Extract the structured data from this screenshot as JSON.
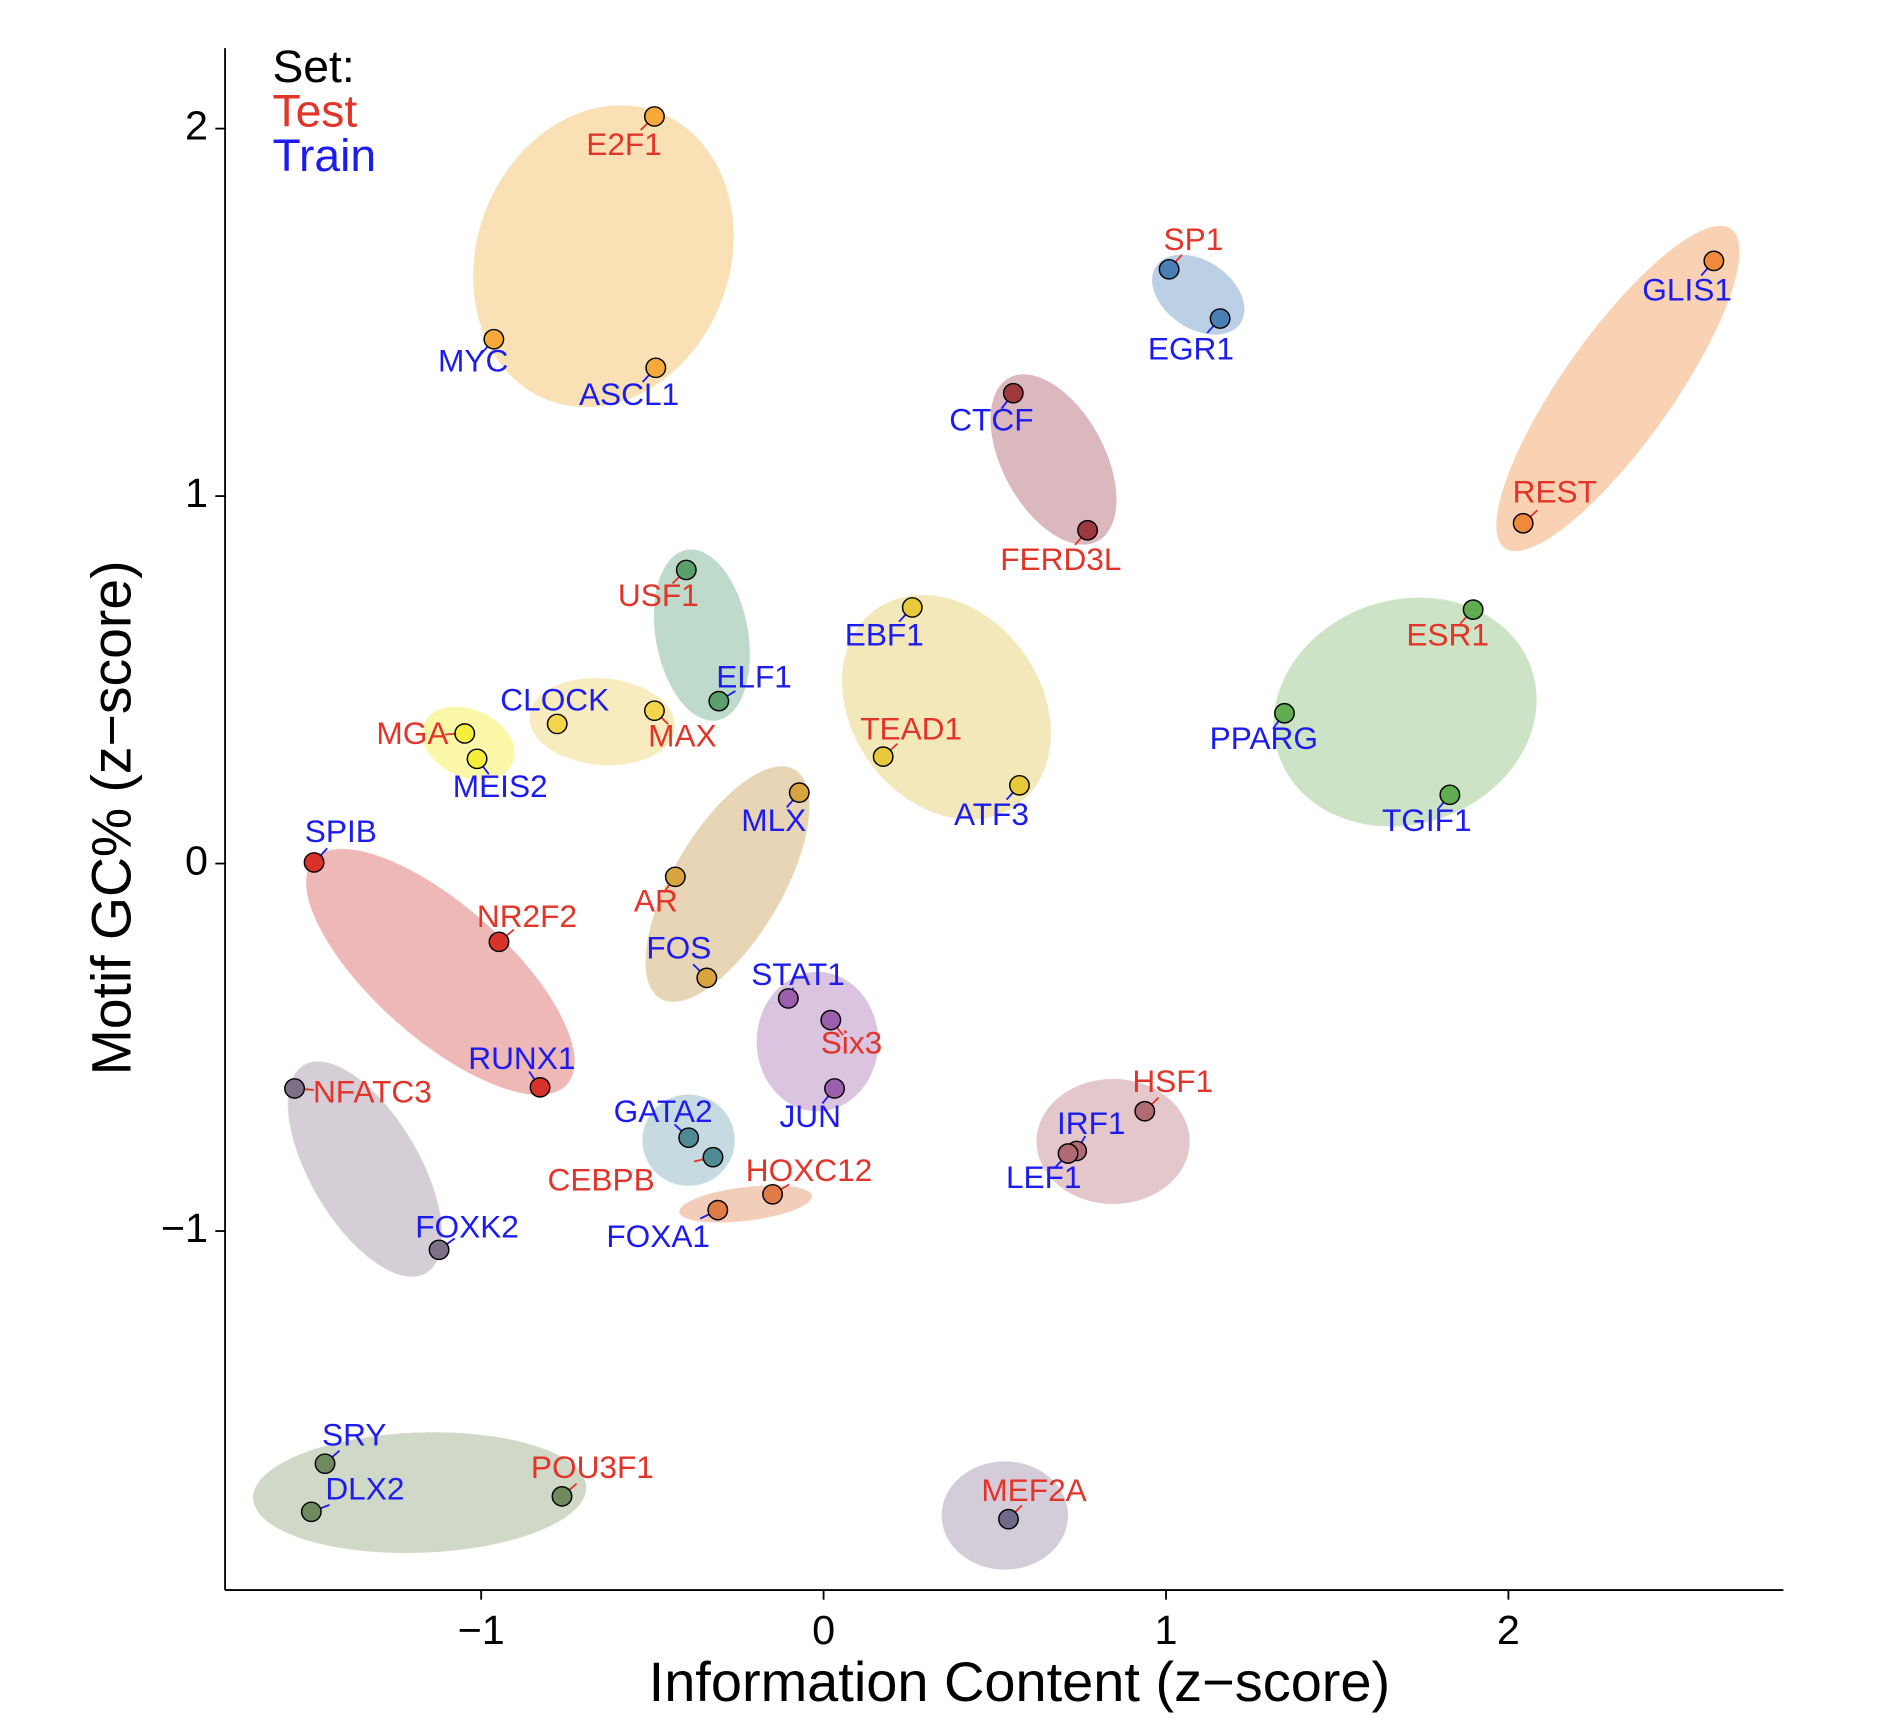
{
  "chart_data": {
    "type": "scatter",
    "x_label": "Information Content (z−score)",
    "y_label": "Motif GC% (z−score)",
    "legend_title": "Set:",
    "xlim": [
      -1.748,
      2.803
    ],
    "ylim": [
      -1.977,
      2.219
    ],
    "xticks": [
      {
        "value": -1,
        "label": "−1"
      },
      0,
      1,
      2
    ],
    "yticks": [
      {
        "value": -1,
        "label": "−1"
      },
      0,
      1,
      2
    ],
    "series": [
      {
        "name": "Test",
        "color": "#e3342a",
        "labels": [
          "E2F1",
          "SP1",
          "REST",
          "FERD3L",
          "USF1",
          "TEAD1",
          "ESR1",
          "MGA",
          "MAX",
          "AR",
          "NR2F2",
          "NFATC3",
          "Six3",
          "CEBPB",
          "HOXC12",
          "HSF1",
          "POU3F1",
          "MEF2A"
        ],
        "x": [
          -0.494,
          1.009,
          2.043,
          0.771,
          -0.401,
          0.174,
          1.897,
          -1.048,
          -0.494,
          -0.433,
          -0.948,
          -1.545,
          0.021,
          -0.323,
          -0.149,
          0.938,
          -0.764,
          0.54
        ],
        "values": [
          2.033,
          1.617,
          0.926,
          0.907,
          0.799,
          0.291,
          0.691,
          0.354,
          0.416,
          -0.036,
          -0.213,
          -0.612,
          -0.426,
          -0.799,
          -0.9,
          -0.674,
          -1.722,
          -1.784
        ],
        "fills": [
          "#f4a93a",
          "#4a7fb5",
          "#f08a3a",
          "#a0393f",
          "#5aa06c",
          "#e8c93a",
          "#5fad4e",
          "#f5ee3a",
          "#f2d54a",
          "#d9a33e",
          "#d8332b",
          "#7d7189",
          "#9b5fae",
          "#4f8a95",
          "#e07a46",
          "#b06a72",
          "#6e8a5e",
          "#6e6a88"
        ]
      },
      {
        "name": "Train",
        "color": "#1c1cf0",
        "labels": [
          "MYC",
          "ASCL1",
          "EGR1",
          "GLIS1",
          "CTCF",
          "ELF1",
          "EBF1",
          "ATF3",
          "PPARG",
          "TGIF1",
          "MEIS2",
          "CLOCK",
          "MLX",
          "FOS",
          "SPIB",
          "RUNX1",
          "FOXK2",
          "STAT1",
          "JUN",
          "GATA2",
          "FOXA1",
          "IRF1",
          "LEF1",
          "SRY",
          "DLX2"
        ],
        "x": [
          -0.963,
          -0.49,
          1.158,
          2.6,
          0.554,
          -0.306,
          0.259,
          0.572,
          1.346,
          1.829,
          -1.012,
          -0.778,
          -0.071,
          -0.341,
          -1.488,
          -0.828,
          -1.123,
          -0.103,
          0.032,
          -0.394,
          -0.309,
          0.739,
          0.714,
          -1.456,
          -1.496
        ],
        "values": [
          1.427,
          1.349,
          1.483,
          1.64,
          1.28,
          0.442,
          0.697,
          0.213,
          0.409,
          0.187,
          0.285,
          0.38,
          0.193,
          -0.311,
          0.003,
          -0.609,
          -1.051,
          -0.367,
          -0.612,
          -0.746,
          -0.943,
          -0.782,
          -0.789,
          -1.633,
          -1.764
        ],
        "fills": [
          "#f4a93a",
          "#f4a93a",
          "#4a7fb5",
          "#f08a3a",
          "#a0393f",
          "#5aa06c",
          "#e8c93a",
          "#e8c93a",
          "#5fad4e",
          "#5fad4e",
          "#f5ee3a",
          "#f2d54a",
          "#d9a33e",
          "#d9a33e",
          "#d8332b",
          "#d8332b",
          "#7d7189",
          "#9b5fae",
          "#9b5fae",
          "#4f8a95",
          "#e07a46",
          "#b06a72",
          "#b06a72",
          "#6e8a5e",
          "#6e8a5e"
        ]
      }
    ]
  }
}
